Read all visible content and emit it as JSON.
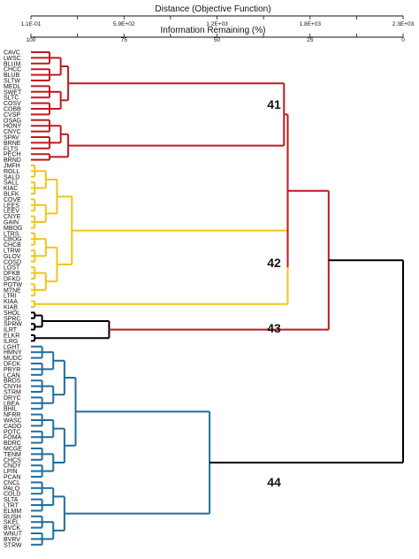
{
  "chart_data": {
    "type": "dendrogram",
    "top_axis": {
      "title": "Distance (Objective Function)",
      "ticks": [
        "1.1E-01",
        "5.9E+02",
        "1.2E+03",
        "1.8E+03",
        "2.3E+03"
      ],
      "range": [
        0.11,
        2300
      ]
    },
    "bottom_axis": {
      "title": "Information Remaining (%)",
      "ticks": [
        "100",
        "75",
        "50",
        "25",
        "0"
      ],
      "range": [
        100,
        0
      ]
    },
    "colors": {
      "cluster_41": "#c0191f",
      "cluster_42": "#f0c419",
      "cluster_43": "#000000",
      "cluster_44": "#1f6e9c",
      "root": "#000000"
    },
    "leaves": [
      "CAVC",
      "LWSC",
      "BLUM",
      "CHCC",
      "BLUB",
      "SLTW",
      "MEDL",
      "SWET",
      "SLTC",
      "COSV",
      "COBB",
      "CVSP",
      "OSAG",
      "HONY",
      "CNYC",
      "SPAV",
      "BRNE",
      "FLTS",
      "PECH",
      "BRND",
      "JMFH",
      "ROLL",
      "SALD",
      "SALL",
      "KIAC",
      "BLFK",
      "COVE",
      "LEES",
      "LEEV",
      "CNYE",
      "GAIN",
      "MBOG",
      "LTRS",
      "CBOG",
      "CHCB",
      "LTRW",
      "GLOV",
      "COSD",
      "LOST",
      "DFKB",
      "DFKD",
      "POTW",
      "MTNE",
      "LTRI",
      "KIAA",
      "KIAB",
      "SHOL",
      "SPRC",
      "SPRW",
      "ILRT",
      "ELKR",
      "ILRG",
      "LGHT",
      "HMNY",
      "MUDC",
      "DFCK",
      "PRYR",
      "LCAN",
      "BRDS",
      "CNYH",
      "STRM",
      "DRYC",
      "LBEA",
      "BHIL",
      "NFRR",
      "WASC",
      "CADO",
      "POTC",
      "FOMA",
      "BDRC",
      "MCGE",
      "TENM",
      "CHCS",
      "CNDY",
      "LPIN",
      "PCAN",
      "CNCL",
      "PALO",
      "COLD",
      "SLTA",
      "LTRT",
      "ELMM",
      "RUSH",
      "SKEL",
      "BVCK",
      "WNUT",
      "BVRV",
      "STRW"
    ],
    "clusters": [
      {
        "label": "41",
        "first_leaf": "CAVC",
        "last_leaf": "BRND",
        "merge_info_remaining": 32
      },
      {
        "label": "42",
        "first_leaf": "JMFH",
        "last_leaf": "KIAB",
        "merge_info_remaining": 31
      },
      {
        "label": "43",
        "first_leaf": "SHOL",
        "last_leaf": "ILRG",
        "merge_info_remaining": 79
      },
      {
        "label": "44",
        "first_leaf": "LGHT",
        "last_leaf": "STRW",
        "merge_info_remaining": 52
      }
    ],
    "higher_merges": [
      {
        "children": [
          "41",
          "42"
        ],
        "info_remaining": 31
      },
      {
        "children": [
          "41-42",
          "43"
        ],
        "info_remaining": 20
      },
      {
        "children": [
          "41-42-43",
          "44"
        ],
        "info_remaining": 0
      }
    ]
  }
}
